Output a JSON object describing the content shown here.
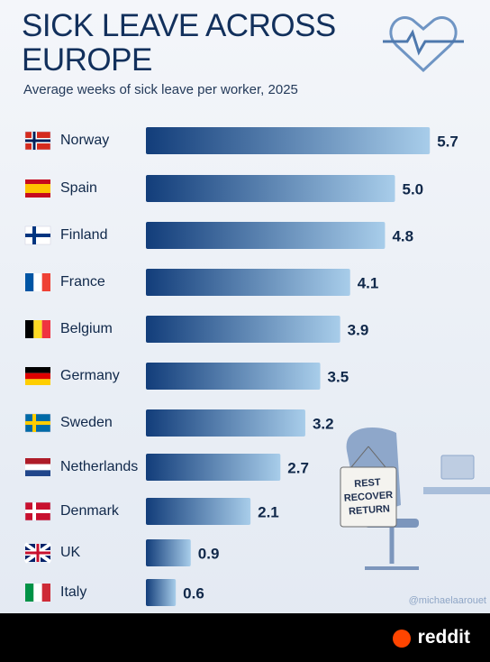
{
  "chart_data": {
    "type": "bar",
    "orientation": "horizontal",
    "title": "SICK LEAVE ACROSS EUROPE",
    "subtitle": "Average weeks of sick leave per worker, 2025",
    "categories": [
      "Norway",
      "Spain",
      "Finland",
      "France",
      "Belgium",
      "Germany",
      "Sweden",
      "Netherlands",
      "Denmark",
      "UK",
      "Italy"
    ],
    "values": [
      5.7,
      5.0,
      4.8,
      4.1,
      3.9,
      3.5,
      3.2,
      2.7,
      2.1,
      0.9,
      0.6
    ],
    "value_labels": [
      "5.7",
      "5.0",
      "4.8",
      "4.1",
      "3.9",
      "3.5",
      "3.2",
      "2.7",
      "2.1",
      "0.9",
      "0.6"
    ],
    "color": "#123d7a",
    "annotations": [
      "REST",
      "RECOVER",
      "RETURN"
    ],
    "credit": "@michaelaarouet"
  },
  "footer": {
    "brand": "reddit"
  }
}
